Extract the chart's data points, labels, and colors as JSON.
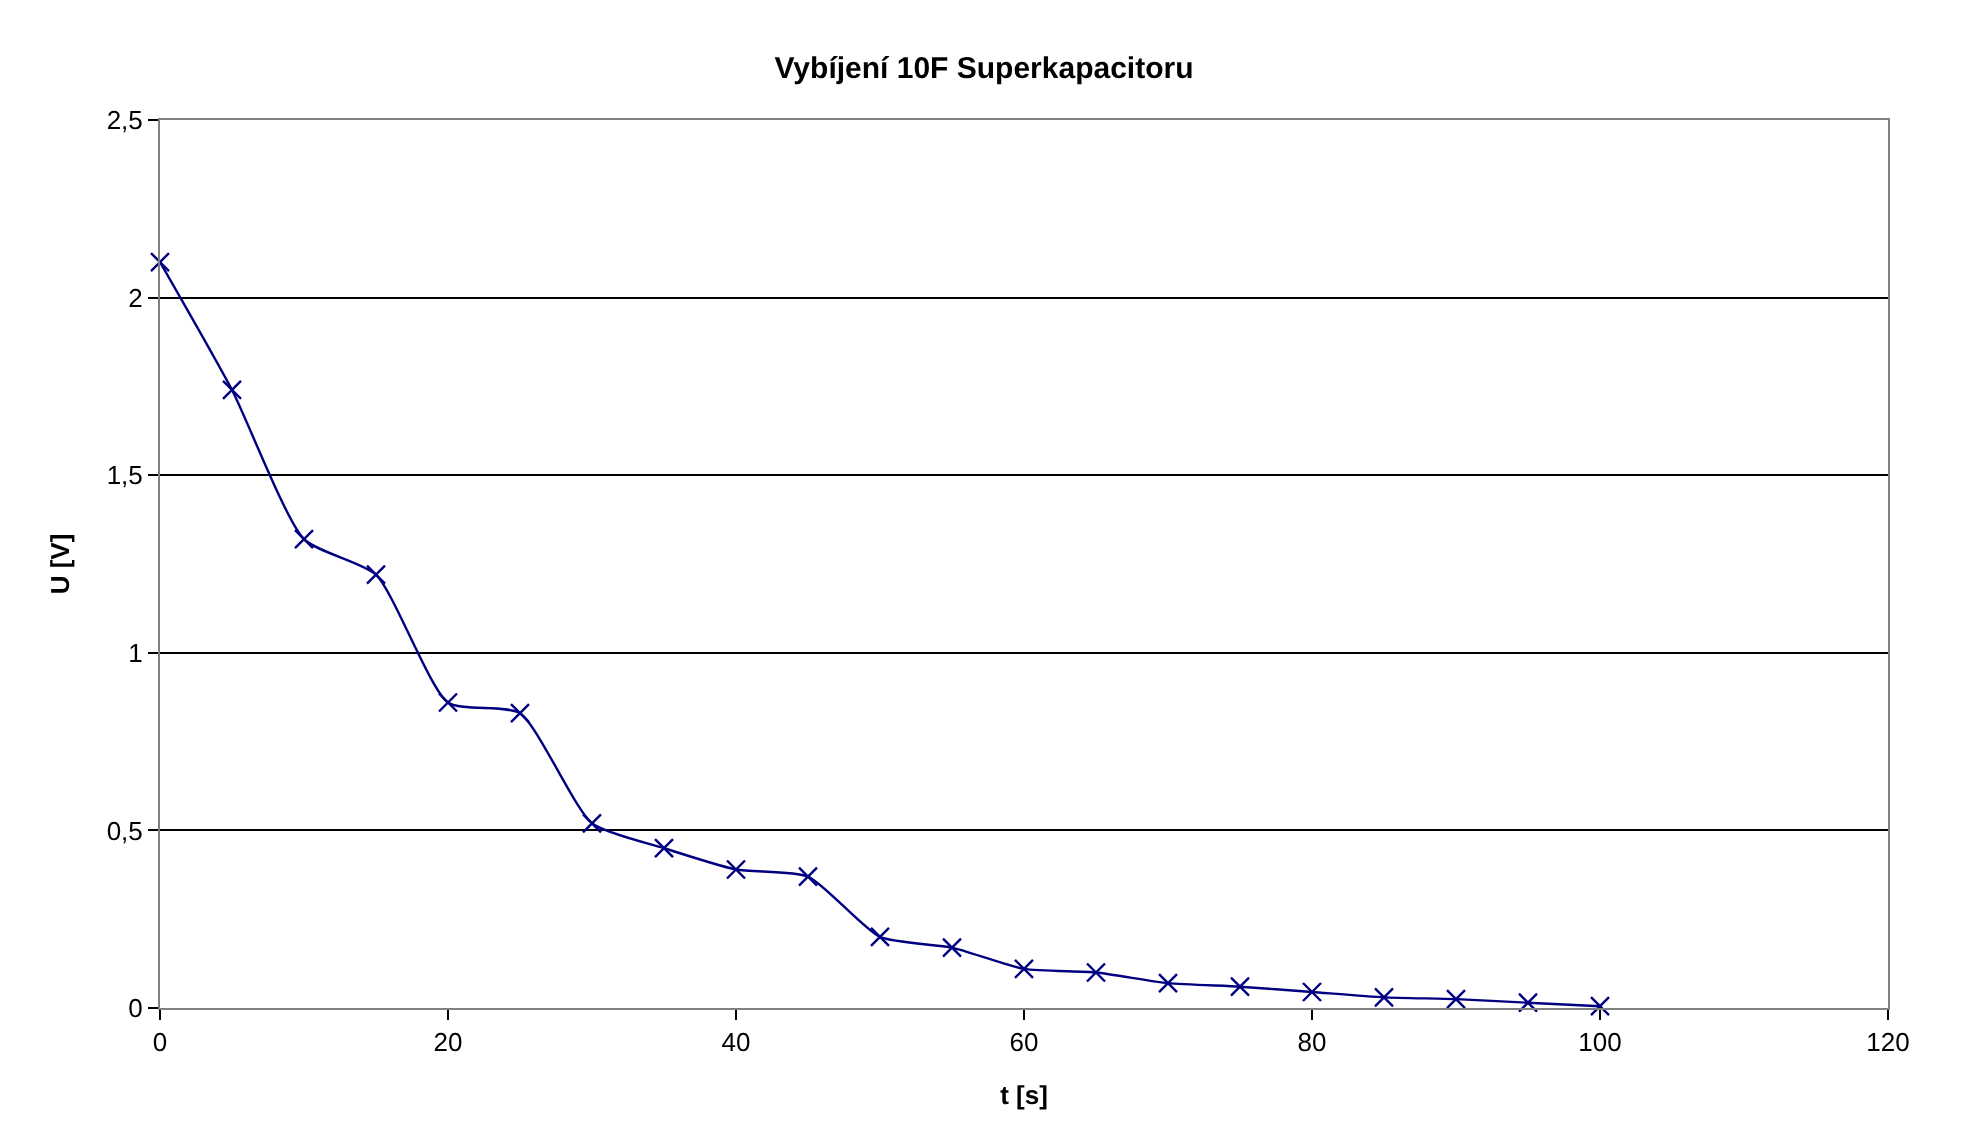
{
  "chart_data": {
    "type": "line",
    "title": "Vybíjení 10F Superkapacitoru",
    "xlabel": "t [s]",
    "ylabel": "U [V]",
    "x": [
      0,
      5,
      10,
      15,
      20,
      25,
      30,
      35,
      40,
      45,
      50,
      55,
      60,
      65,
      70,
      75,
      80,
      85,
      90,
      95,
      100
    ],
    "series": [
      {
        "color": "#000080",
        "values": [
          2.1,
          1.74,
          1.32,
          1.22,
          0.86,
          0.83,
          0.52,
          0.45,
          0.39,
          0.37,
          0.2,
          0.17,
          0.11,
          0.1,
          0.07,
          0.06,
          0.045,
          0.03,
          0.025,
          0.015,
          0.005
        ]
      }
    ],
    "xlim": [
      0,
      120
    ],
    "xticks": [
      0,
      20,
      40,
      60,
      80,
      100,
      120
    ],
    "ylim": [
      0,
      2.5
    ],
    "yticks": [
      0,
      {
        "value": 0.5,
        "label": "0,5"
      },
      1,
      {
        "value": 1.5,
        "label": "1,5"
      },
      2,
      {
        "value": 2.5,
        "label": "2,5"
      }
    ],
    "grid": "y",
    "legend": false,
    "marker": "cross",
    "line_style": "solid"
  }
}
